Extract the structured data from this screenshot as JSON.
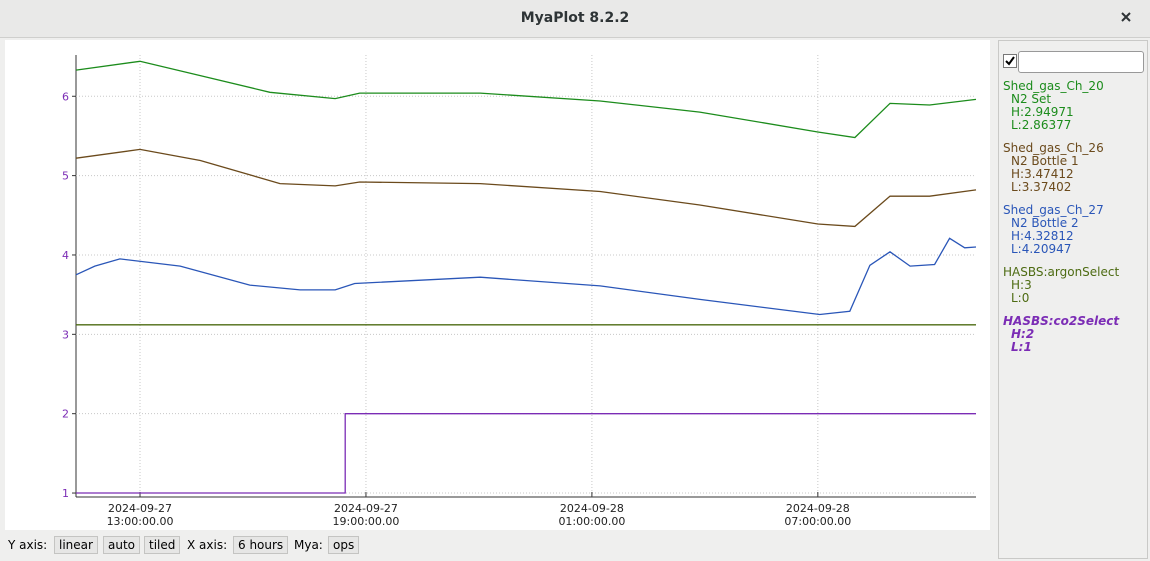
{
  "window": {
    "title": "MyaPlot 8.2.2"
  },
  "chart_data": {
    "type": "line",
    "xlim": [
      "2024-09-27 11:18",
      "2024-09-28 11:12"
    ],
    "xticks": [
      {
        "value": "2024-09-27 13:00",
        "label": "2024-09-27\n13:00:00.00"
      },
      {
        "value": "2024-09-27 19:00",
        "label": "2024-09-27\n19:00:00.00"
      },
      {
        "value": "2024-09-28 01:00",
        "label": "2024-09-28\n01:00:00.00"
      },
      {
        "value": "2024-09-28 07:00",
        "label": "2024-09-28\n07:00:00.00"
      }
    ],
    "ylim": [
      0.95,
      6.52
    ],
    "yticks": [
      1,
      2,
      3,
      4,
      5,
      6
    ],
    "grid": true,
    "series": [
      {
        "name": "Shed_gas_Ch_20",
        "description": "N2 Set",
        "high": "H:2.94971",
        "low": "L:2.86377",
        "color": "#1c8c1c",
        "x": [
          "2024-09-27 11:18",
          "2024-09-27 13:00",
          "2024-09-27 14:36",
          "2024-09-27 16:27",
          "2024-09-27 18:11",
          "2024-09-27 18:50",
          "2024-09-27 22:02",
          "2024-09-28 01:13",
          "2024-09-28 03:52",
          "2024-09-28 07:00",
          "2024-09-28 07:59",
          "2024-09-28 08:55",
          "2024-09-28 09:58",
          "2024-09-28 11:12"
        ],
        "values": [
          6.33,
          6.44,
          6.26,
          6.05,
          5.97,
          6.04,
          6.04,
          5.94,
          5.8,
          5.55,
          5.48,
          5.91,
          5.89,
          5.96
        ]
      },
      {
        "name": "Shed_gas_Ch_26",
        "description": "N2 Bottle 1",
        "high": "H:3.47412",
        "low": "L:3.37402",
        "color": "#6b4a1c",
        "x": [
          "2024-09-27 11:18",
          "2024-09-27 13:00",
          "2024-09-27 14:36",
          "2024-09-27 16:43",
          "2024-09-27 18:11",
          "2024-09-27 18:50",
          "2024-09-27 22:02",
          "2024-09-28 01:13",
          "2024-09-28 03:52",
          "2024-09-28 07:00",
          "2024-09-28 07:59",
          "2024-09-28 08:55",
          "2024-09-28 09:58",
          "2024-09-28 11:12"
        ],
        "values": [
          5.22,
          5.33,
          5.19,
          4.9,
          4.87,
          4.92,
          4.9,
          4.8,
          4.63,
          4.39,
          4.36,
          4.74,
          4.74,
          4.82
        ]
      },
      {
        "name": "Shed_gas_Ch_27",
        "description": "N2 Bottle 2",
        "high": "H:4.32812",
        "low": "L:4.20947",
        "color": "#2a56b8",
        "x": [
          "2024-09-27 11:18",
          "2024-09-27 11:48",
          "2024-09-27 12:28",
          "2024-09-27 14:04",
          "2024-09-27 15:55",
          "2024-09-27 17:15",
          "2024-09-27 18:11",
          "2024-09-27 18:42",
          "2024-09-27 22:02",
          "2024-09-28 01:13",
          "2024-09-28 03:52",
          "2024-09-28 07:03",
          "2024-09-28 07:51",
          "2024-09-28 08:23",
          "2024-09-28 08:55",
          "2024-09-28 09:27",
          "2024-09-28 10:06",
          "2024-09-28 10:30",
          "2024-09-28 10:54",
          "2024-09-28 11:12"
        ],
        "values": [
          3.75,
          3.86,
          3.95,
          3.86,
          3.62,
          3.56,
          3.56,
          3.64,
          3.72,
          3.61,
          3.44,
          3.25,
          3.29,
          3.87,
          4.04,
          3.86,
          3.88,
          4.21,
          4.09,
          4.1
        ]
      },
      {
        "name": "HASBS:argonSelect",
        "high": "H:3",
        "low": "L:0",
        "color": "#4d6b12",
        "x": [
          "2024-09-27 11:18",
          "2024-09-28 11:12"
        ],
        "values": [
          3.12,
          3.12
        ]
      },
      {
        "name": "HASBS:co2Select",
        "high": "H:2",
        "low": "L:1",
        "color": "#7b2cb5",
        "highlighted": true,
        "x": [
          "2024-09-27 11:18",
          "2024-09-27 18:27",
          "2024-09-27 18:27",
          "2024-09-28 11:12"
        ],
        "values": [
          1,
          1,
          2,
          2
        ]
      }
    ]
  },
  "status_bar": {
    "y_axis_label": "Y axis:",
    "y_scale": "linear",
    "y_range": "auto",
    "y_layout": "tiled",
    "x_axis_label": "X axis:",
    "x_span": "6 hours",
    "mya_label": "Mya:",
    "mya_deployment": "ops"
  }
}
